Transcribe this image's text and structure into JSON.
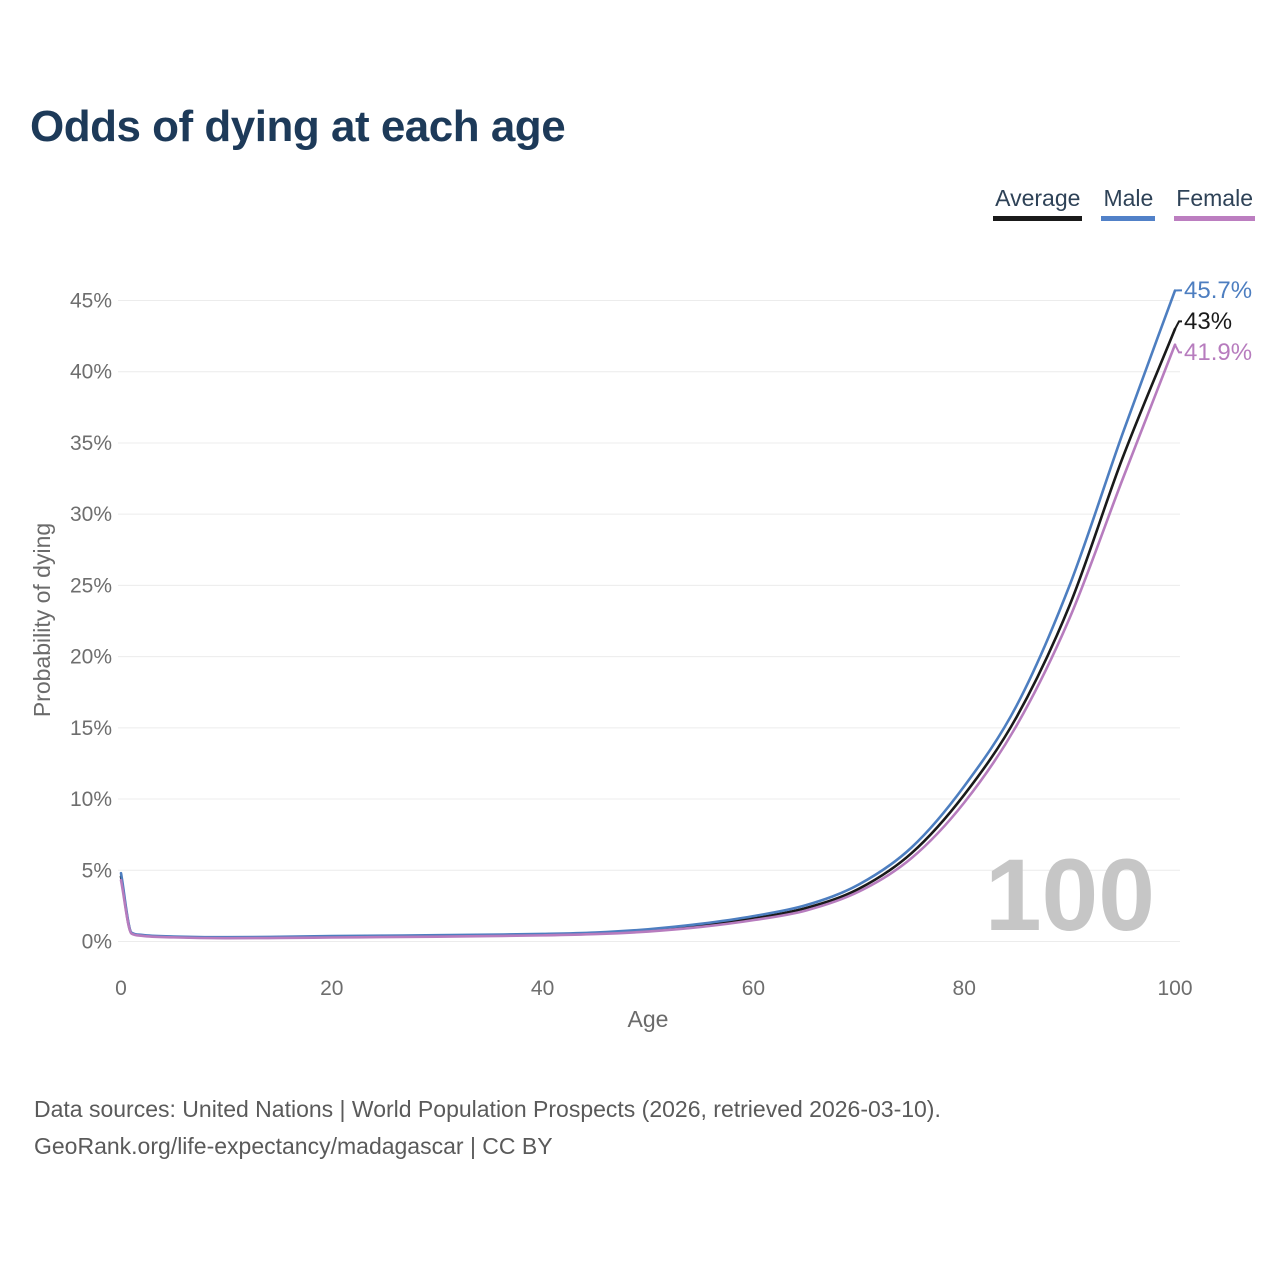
{
  "title": "Odds of dying at each age",
  "legend": {
    "items": [
      {
        "label": "Average",
        "color": "#1a1a1a"
      },
      {
        "label": "Male",
        "color": "#5181c8"
      },
      {
        "label": "Female",
        "color": "#bc7ec0"
      }
    ]
  },
  "chart_data": {
    "type": "line",
    "title": "Odds of dying at each age",
    "xlabel": "Age",
    "ylabel": "Probability of dying",
    "xlim": [
      0,
      100
    ],
    "ylim": [
      0,
      45
    ],
    "x_ticks": [
      0,
      20,
      40,
      60,
      80,
      100
    ],
    "y_ticks": [
      0,
      5,
      10,
      15,
      20,
      25,
      30,
      35,
      40,
      45
    ],
    "y_tick_suffix": "%",
    "grid": "horizontal",
    "legend_position": "top-right",
    "watermark": "100",
    "ages": [
      0,
      1,
      2,
      5,
      10,
      15,
      20,
      25,
      30,
      35,
      40,
      45,
      50,
      55,
      60,
      65,
      70,
      75,
      80,
      85,
      90,
      95,
      100
    ],
    "series": [
      {
        "name": "Average",
        "color": "#1a1a1a",
        "end_label": "43%",
        "values": [
          4.55,
          0.58,
          0.43,
          0.32,
          0.26,
          0.29,
          0.33,
          0.36,
          0.39,
          0.43,
          0.48,
          0.57,
          0.77,
          1.12,
          1.62,
          2.35,
          3.7,
          6.2,
          10.3,
          15.8,
          23.6,
          33.9,
          43.0
        ]
      },
      {
        "name": "Male",
        "color": "#4d7ec0",
        "end_label": "45.7%",
        "values": [
          4.8,
          0.62,
          0.46,
          0.35,
          0.3,
          0.33,
          0.38,
          0.41,
          0.44,
          0.48,
          0.53,
          0.63,
          0.86,
          1.24,
          1.78,
          2.55,
          4.0,
          6.6,
          10.9,
          16.6,
          25.0,
          35.6,
          45.7
        ]
      },
      {
        "name": "Female",
        "color": "#b77cbe",
        "end_label": "41.9%",
        "values": [
          4.3,
          0.55,
          0.4,
          0.29,
          0.23,
          0.25,
          0.28,
          0.31,
          0.34,
          0.38,
          0.43,
          0.52,
          0.7,
          1.02,
          1.5,
          2.18,
          3.5,
          5.85,
          9.75,
          15.2,
          22.7,
          32.4,
          41.9
        ]
      }
    ]
  },
  "footer": {
    "line1": "Data sources: United Nations | World Population Prospects (2026, retrieved 2026-03-10).",
    "line2": "GeoRank.org/life-expectancy/madagascar | CC BY"
  }
}
